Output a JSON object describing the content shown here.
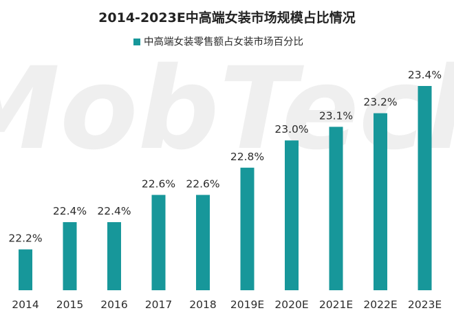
{
  "watermark": "MobTech",
  "colors": {
    "bar": "#17979a",
    "title": "#222222",
    "label": "#2b2b2b",
    "watermark": "#eeeeee"
  },
  "chart_data": {
    "type": "bar",
    "title": "2014-2023E中高端女装市场规模占比情况",
    "legend": {
      "position": "top-center"
    },
    "categories": [
      "2014",
      "2015",
      "2016",
      "2017",
      "2018",
      "2019E",
      "2020E",
      "2021E",
      "2022E",
      "2023E"
    ],
    "series": [
      {
        "name": "中高端女装零售额占女装市场百分比",
        "values": [
          22.2,
          22.4,
          22.4,
          22.6,
          22.6,
          22.8,
          23.0,
          23.1,
          23.2,
          23.4
        ],
        "data_labels": [
          "22.2%",
          "22.4%",
          "22.4%",
          "22.6%",
          "22.6%",
          "22.8%",
          "23.0%",
          "23.1%",
          "23.2%",
          "23.4%"
        ]
      }
    ],
    "xlabel": "",
    "ylabel": "",
    "ylim": [
      21.9,
      23.4
    ],
    "grid": false,
    "y_axis_visible": false
  }
}
